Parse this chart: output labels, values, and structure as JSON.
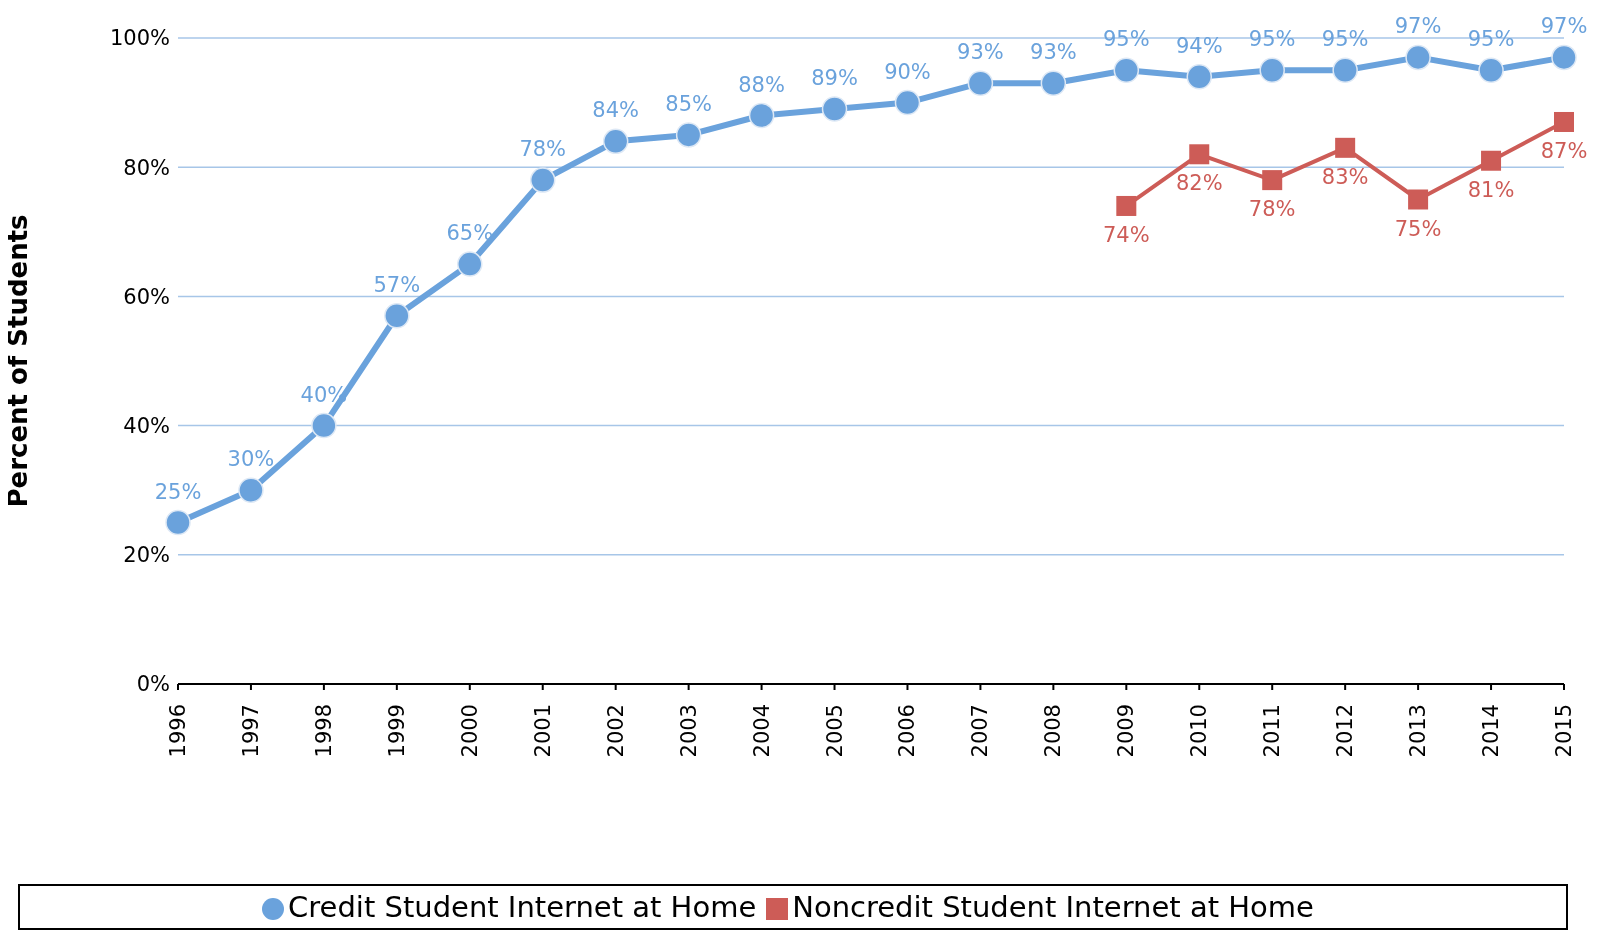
{
  "chart_data": {
    "type": "line",
    "ylabel": "Percent of Students",
    "categories": [
      "1996",
      "1997",
      "1998",
      "1999",
      "2000",
      "2001",
      "2002",
      "2003",
      "2004",
      "2005",
      "2006",
      "2007",
      "2008",
      "2009",
      "2010",
      "2011",
      "2012",
      "2013",
      "2014",
      "2015"
    ],
    "series": [
      {
        "name": "Credit Student Internet at Home",
        "color": "#6aa2dc",
        "marker": "circle",
        "values": [
          25,
          30,
          40,
          57,
          65,
          78,
          84,
          85,
          88,
          89,
          90,
          93,
          93,
          95,
          94,
          95,
          95,
          97,
          95,
          97
        ],
        "value_labels": [
          "25%",
          "30%",
          "40%",
          "57%",
          "65%",
          "78%",
          "84%",
          "85%",
          "88%",
          "89%",
          "90%",
          "93%",
          "93%",
          "95%",
          "94%",
          "95%",
          "95%",
          "97%",
          "95%",
          "97%"
        ]
      },
      {
        "name": "Noncredit Student Internet at Home",
        "color": "#cd5c57",
        "marker": "square",
        "values": [
          null,
          null,
          null,
          null,
          null,
          null,
          null,
          null,
          null,
          null,
          null,
          null,
          null,
          74,
          82,
          78,
          83,
          75,
          81,
          87
        ],
        "value_labels": [
          null,
          null,
          null,
          null,
          null,
          null,
          null,
          null,
          null,
          null,
          null,
          null,
          null,
          "74%",
          "82%",
          "78%",
          "83%",
          "75%",
          "81%",
          "87%"
        ]
      }
    ],
    "ylim": [
      0,
      100
    ],
    "yticks": [
      {
        "value": 0,
        "label": "0%"
      },
      {
        "value": 20,
        "label": "20%"
      },
      {
        "value": 40,
        "label": "40%"
      },
      {
        "value": 60,
        "label": "60%"
      },
      {
        "value": 80,
        "label": "80%"
      },
      {
        "value": 100,
        "label": "100%"
      }
    ],
    "grid": "y",
    "legend": "bottom",
    "line_style": "solid"
  }
}
